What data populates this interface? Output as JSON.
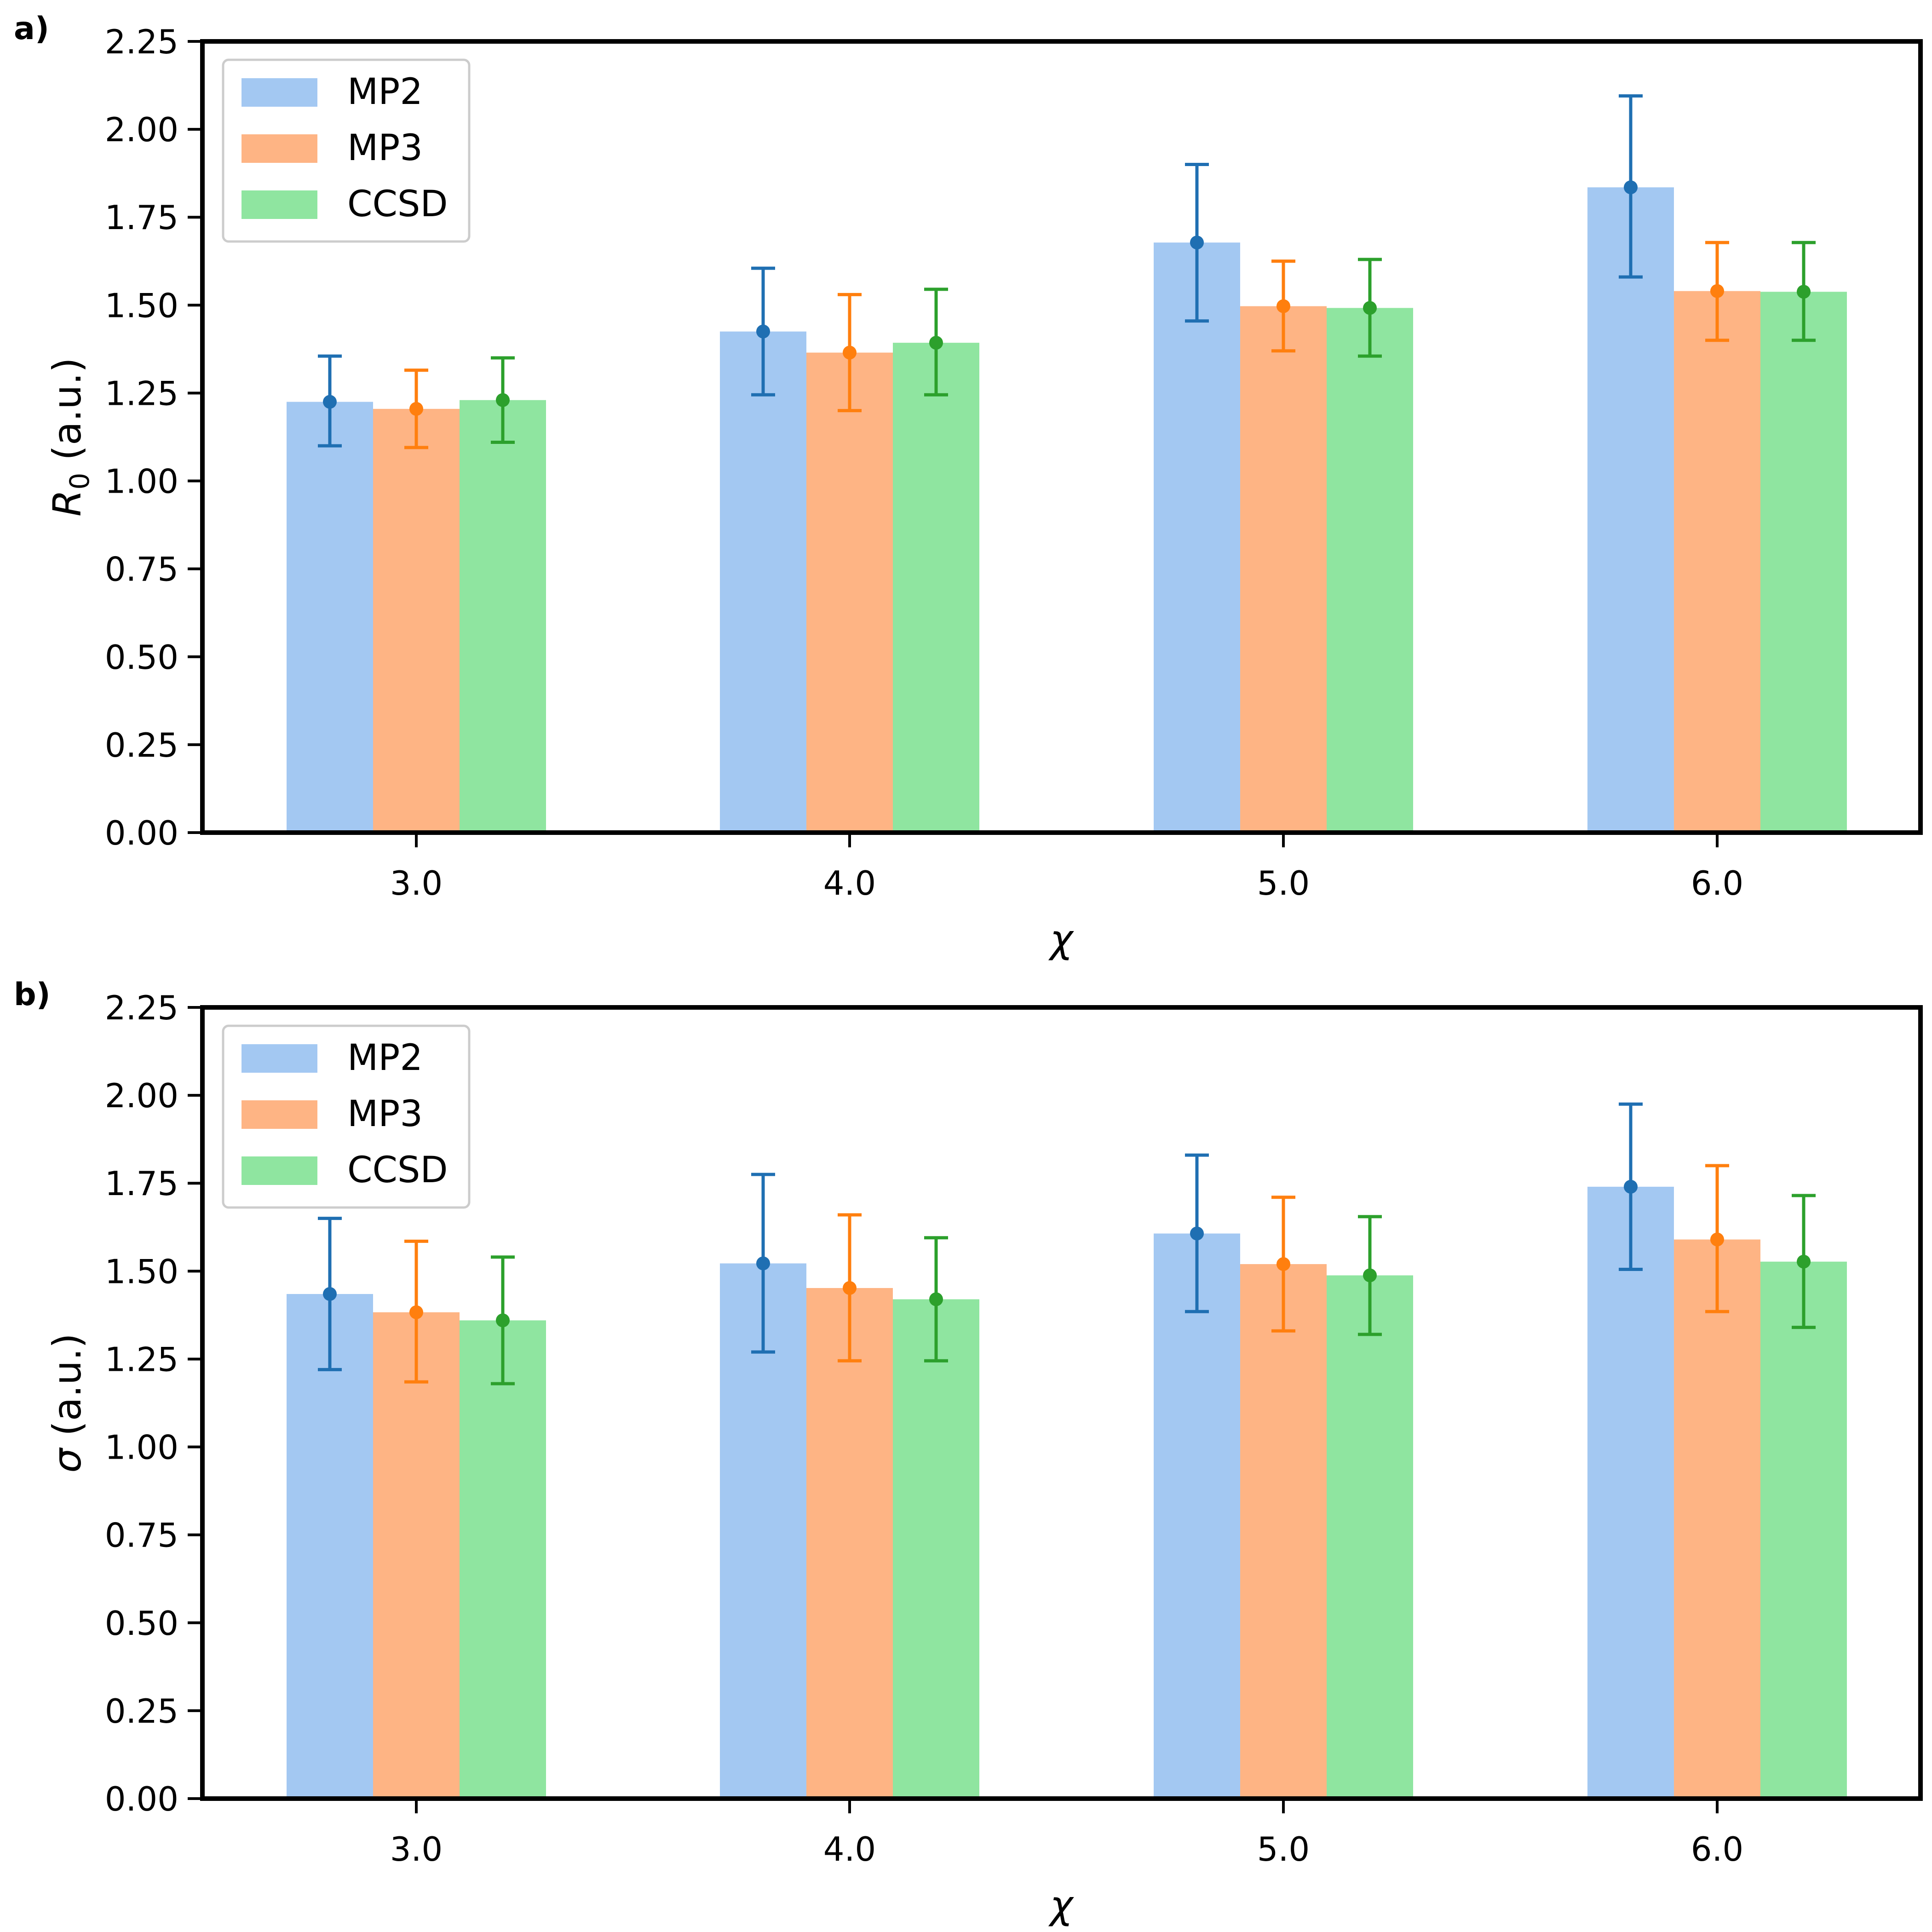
{
  "chart_data": [
    {
      "type": "bar",
      "panel_label": "a)",
      "categories": [
        "3.0",
        "4.0",
        "5.0",
        "6.0"
      ],
      "xlabel": "χ",
      "ylabel": "R0 (a.u.)",
      "ylabel_base": "R",
      "ylabel_subscript": "0",
      "ylabel_unit": " (a.u.)",
      "ylim": [
        0,
        2.25
      ],
      "yticks": [
        "0.00",
        "0.25",
        "0.50",
        "0.75",
        "1.00",
        "1.25",
        "1.50",
        "1.75",
        "2.00",
        "2.25"
      ],
      "legend_position": "top-left",
      "grid": false,
      "series": [
        {
          "name": "MP2",
          "values": [
            1.225,
            1.425,
            1.678,
            1.835
          ],
          "err_low": [
            1.1,
            1.245,
            1.455,
            1.58
          ],
          "err_high": [
            1.355,
            1.605,
            1.9,
            2.095
          ]
        },
        {
          "name": "MP3",
          "values": [
            1.205,
            1.365,
            1.497,
            1.54
          ],
          "err_low": [
            1.095,
            1.2,
            1.37,
            1.4
          ],
          "err_high": [
            1.315,
            1.53,
            1.625,
            1.678
          ]
        },
        {
          "name": "CCSD",
          "values": [
            1.23,
            1.393,
            1.492,
            1.538
          ],
          "err_low": [
            1.11,
            1.245,
            1.355,
            1.4
          ],
          "err_high": [
            1.35,
            1.545,
            1.63,
            1.678
          ]
        }
      ]
    },
    {
      "type": "bar",
      "panel_label": "b)",
      "categories": [
        "3.0",
        "4.0",
        "5.0",
        "6.0"
      ],
      "xlabel": "χ",
      "ylabel": "σ (a.u.)",
      "ylabel_base": "σ",
      "ylabel_subscript": "",
      "ylabel_unit": " (a.u.)",
      "ylim": [
        0,
        2.25
      ],
      "yticks": [
        "0.00",
        "0.25",
        "0.50",
        "0.75",
        "1.00",
        "1.25",
        "1.50",
        "1.75",
        "2.00",
        "2.25"
      ],
      "legend_position": "top-left",
      "grid": false,
      "series": [
        {
          "name": "MP2",
          "values": [
            1.435,
            1.522,
            1.607,
            1.74
          ],
          "err_low": [
            1.22,
            1.27,
            1.385,
            1.505
          ],
          "err_high": [
            1.65,
            1.775,
            1.83,
            1.975
          ]
        },
        {
          "name": "MP3",
          "values": [
            1.383,
            1.452,
            1.52,
            1.59
          ],
          "err_low": [
            1.185,
            1.245,
            1.33,
            1.385
          ],
          "err_high": [
            1.585,
            1.66,
            1.71,
            1.8
          ]
        },
        {
          "name": "CCSD",
          "values": [
            1.36,
            1.42,
            1.488,
            1.527
          ],
          "err_low": [
            1.18,
            1.245,
            1.32,
            1.34
          ],
          "err_high": [
            1.54,
            1.595,
            1.655,
            1.715
          ]
        }
      ]
    }
  ],
  "colors": {
    "bar_fills": [
      "#a3c8f2",
      "#feb484",
      "#8fe5a0"
    ],
    "error_bars": [
      "#1f6fb2",
      "#ff7f0e",
      "#2ca02c"
    ],
    "frame": "#000000"
  }
}
